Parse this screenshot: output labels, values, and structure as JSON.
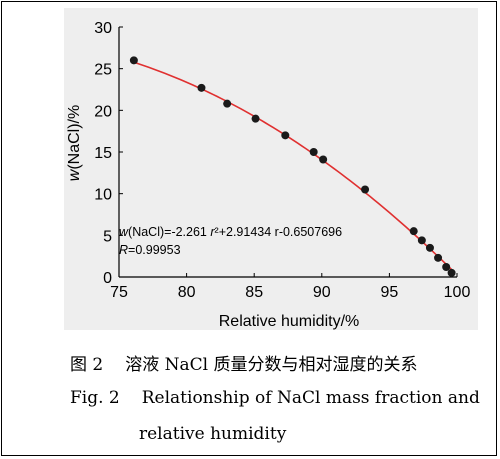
{
  "chart_data": {
    "type": "scatter",
    "xlabel": "Relative humidity/%",
    "ylabel": "w(NaCl)/%",
    "xlim": [
      75,
      100
    ],
    "ylim": [
      0,
      30
    ],
    "xticks": [
      "75",
      "80",
      "85",
      "90",
      "95",
      "100"
    ],
    "yticks": [
      "0",
      "5",
      "10",
      "15",
      "20",
      "25",
      "30"
    ],
    "grid": false,
    "series": [
      {
        "x": [
          76.1,
          81.1,
          83.0,
          85.1,
          87.3,
          89.4,
          90.1,
          93.2,
          96.8,
          97.4,
          98.0,
          98.6,
          99.2,
          99.6
        ],
        "y": [
          26.0,
          22.7,
          20.8,
          19.0,
          17.0,
          15.0,
          14.1,
          10.5,
          5.5,
          4.4,
          3.5,
          2.3,
          1.2,
          0.5
        ],
        "color": "#1a1a1a"
      }
    ],
    "fit_color": "#e03030",
    "fit_coefficients": {
      "a": -2.261,
      "b": 2.91434,
      "c": -0.6507696
    },
    "annotation": {
      "line1_prefix": "w",
      "line1_mid": "(NaCl)=-2.261 ",
      "line1_var": "r",
      "line1_rest": "²+2.91434 r-0.6507696",
      "line2_var": "R",
      "line2_rest": "=0.99953"
    }
  },
  "caption": {
    "cn_num": "图 2",
    "cn_text": "溶液 NaCl 质量分数与相对湿度的关系",
    "en_num": "Fig. 2",
    "en_text_line1": "Relationship of NaCl mass fraction and",
    "en_text_line2": "relative humidity"
  }
}
